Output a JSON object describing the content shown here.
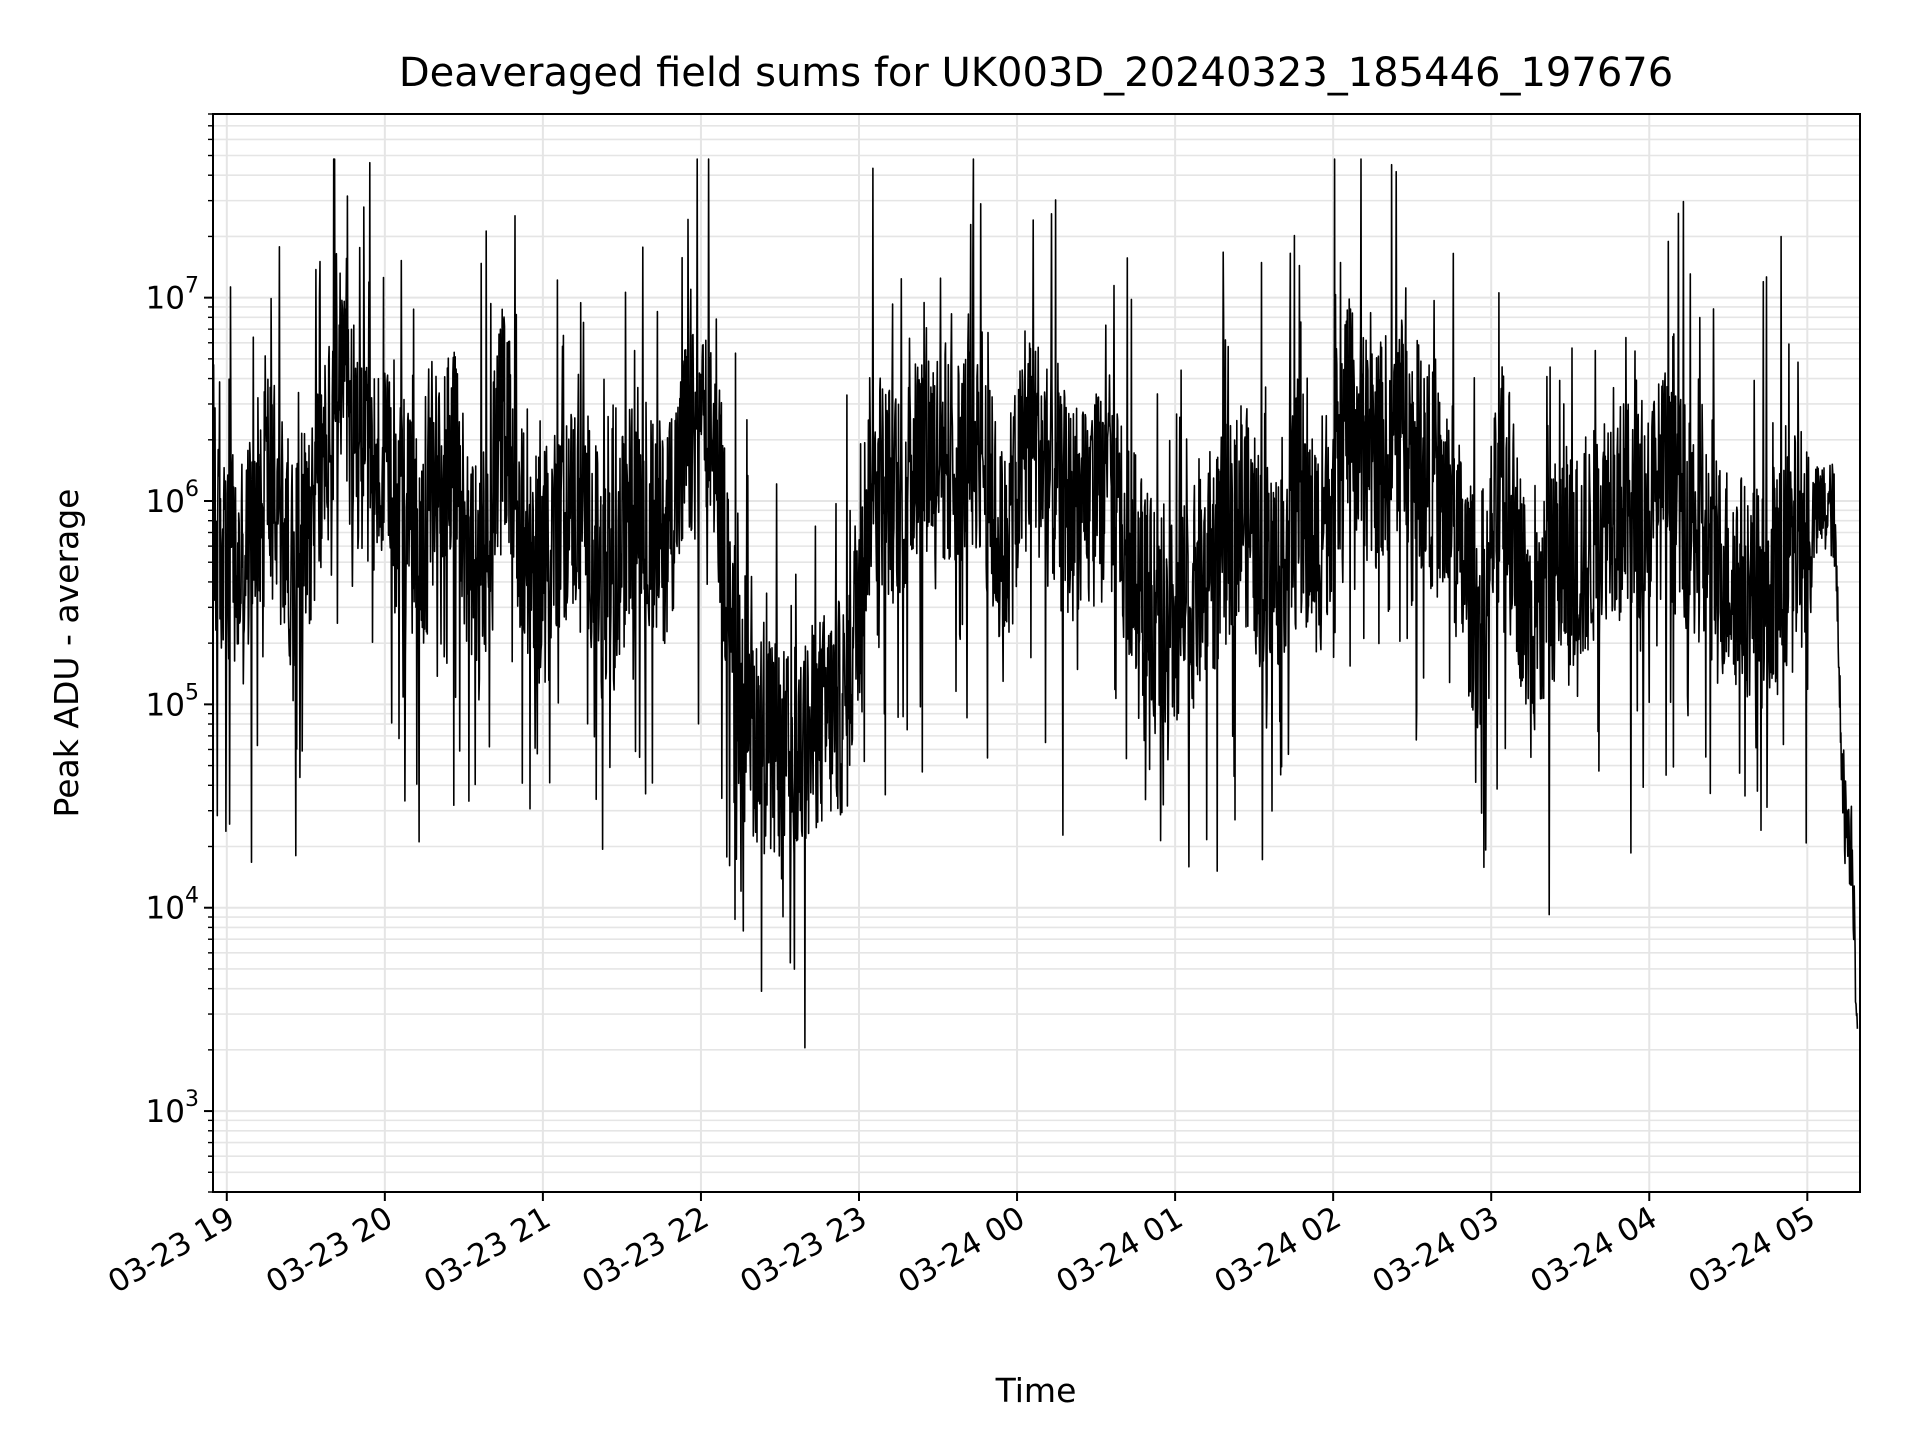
{
  "chart_data": {
    "type": "line",
    "title": "Deaveraged field sums for UK003D_20240323_185446_197676",
    "xlabel": "Time",
    "ylabel": "Peak ADU - average",
    "yscale": "log",
    "ylim": [
      400,
      80000000
    ],
    "xlim": [
      "2024-03-23 18:54:46",
      "2024-03-24 05:20:00"
    ],
    "grid": true,
    "line_color": "#000000",
    "grid_color": "#e5e5e5",
    "x_tick_labels": [
      "03-23 19",
      "03-23 20",
      "03-23 21",
      "03-23 22",
      "03-23 23",
      "03-24 00",
      "03-24 01",
      "03-24 02",
      "03-24 03",
      "03-24 04",
      "03-24 05"
    ],
    "y_ticks": [
      {
        "base": "10",
        "exp": "3",
        "value": 1000
      },
      {
        "base": "10",
        "exp": "4",
        "value": 10000
      },
      {
        "base": "10",
        "exp": "5",
        "value": 100000
      },
      {
        "base": "10",
        "exp": "6",
        "value": 1000000
      },
      {
        "base": "10",
        "exp": "7",
        "value": 10000000
      }
    ],
    "series": [
      {
        "name": "",
        "x": [
          "2024-03-23 18:55",
          "2024-03-23 19:05",
          "2024-03-23 19:15",
          "2024-03-23 19:25",
          "2024-03-23 19:35",
          "2024-03-23 19:43",
          "2024-03-23 19:55",
          "2024-03-23 20:05",
          "2024-03-23 20:15",
          "2024-03-23 20:25",
          "2024-03-23 20:35",
          "2024-03-23 20:45",
          "2024-03-23 20:55",
          "2024-03-23 21:05",
          "2024-03-23 21:15",
          "2024-03-23 21:25",
          "2024-03-23 21:35",
          "2024-03-23 21:45",
          "2024-03-23 21:55",
          "2024-03-23 22:05",
          "2024-03-23 22:15",
          "2024-03-23 22:25",
          "2024-03-23 22:35",
          "2024-03-23 22:45",
          "2024-03-23 22:55",
          "2024-03-23 23:05",
          "2024-03-23 23:15",
          "2024-03-23 23:25",
          "2024-03-23 23:35",
          "2024-03-23 23:45",
          "2024-03-23 23:55",
          "2024-03-24 00:05",
          "2024-03-24 00:15",
          "2024-03-24 00:25",
          "2024-03-24 00:35",
          "2024-03-24 00:45",
          "2024-03-24 00:55",
          "2024-03-24 01:05",
          "2024-03-24 01:15",
          "2024-03-24 01:25",
          "2024-03-24 01:35",
          "2024-03-24 01:45",
          "2024-03-24 01:55",
          "2024-03-24 02:05",
          "2024-03-24 02:15",
          "2024-03-24 02:25",
          "2024-03-24 02:35",
          "2024-03-24 02:45",
          "2024-03-24 02:55",
          "2024-03-24 03:05",
          "2024-03-24 03:15",
          "2024-03-24 03:25",
          "2024-03-24 03:35",
          "2024-03-24 03:45",
          "2024-03-24 03:55",
          "2024-03-24 04:05",
          "2024-03-24 04:15",
          "2024-03-24 04:25",
          "2024-03-24 04:35",
          "2024-03-24 04:45",
          "2024-03-24 04:55",
          "2024-03-24 05:05",
          "2024-03-24 05:10",
          "2024-03-24 05:14",
          "2024-03-24 05:17",
          "2024-03-24 05:19"
        ],
        "y": [
          600000,
          400000,
          1500000,
          500000,
          1200000,
          3000000,
          1500000,
          1000000,
          600000,
          2000000,
          300000,
          3000000,
          400000,
          800000,
          1000000,
          300000,
          1200000,
          600000,
          2000000,
          2000000,
          100000,
          60000,
          50000,
          80000,
          100000,
          1500000,
          1000000,
          2000000,
          1500000,
          2000000,
          500000,
          2500000,
          1000000,
          800000,
          1200000,
          500000,
          200000,
          300000,
          500000,
          1000000,
          400000,
          800000,
          600000,
          3000000,
          1500000,
          2500000,
          1500000,
          800000,
          250000,
          1500000,
          200000,
          500000,
          500000,
          1000000,
          800000,
          1200000,
          800000,
          500000,
          400000,
          300000,
          600000,
          900000,
          900000,
          30000,
          20000,
          3000
        ]
      }
    ]
  }
}
